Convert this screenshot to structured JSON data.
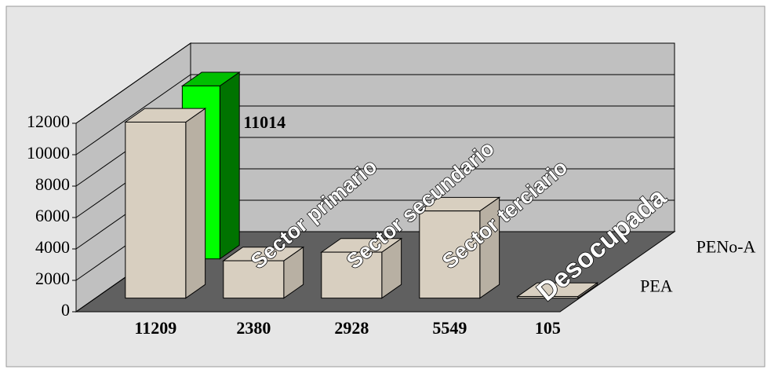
{
  "chart_data": {
    "type": "bar3d",
    "categories": [
      null,
      "Sector primario",
      "Sector secundario",
      "Sector terciario",
      "Desocupada"
    ],
    "series": [
      {
        "name": "PEA",
        "color": "#d8cfc0",
        "values": [
          11209,
          2380,
          2928,
          5549,
          105
        ]
      },
      {
        "name": "PENo-A",
        "color": "#00ff00",
        "values": [
          11014,
          null,
          null,
          null,
          null
        ]
      }
    ],
    "ylim": [
      0,
      12000
    ],
    "yticks": [
      0,
      2000,
      4000,
      6000,
      8000,
      10000,
      12000
    ],
    "grid": true
  }
}
